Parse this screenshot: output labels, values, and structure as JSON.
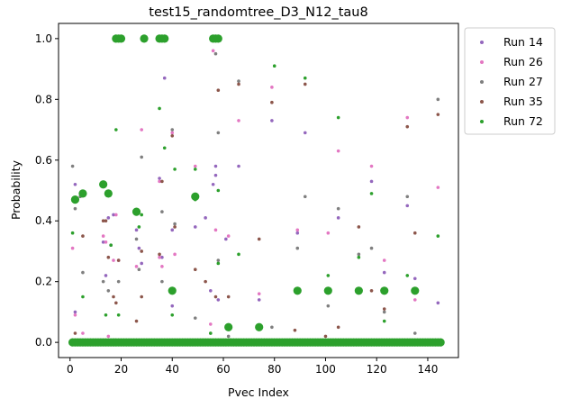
{
  "chart_data": {
    "type": "scatter",
    "title": "test15_randomtree_D3_N12_tau8",
    "xlabel": "Pvec Index",
    "ylabel": "Probability",
    "xlim": [
      -4.5,
      152
    ],
    "ylim": [
      -0.05,
      1.05
    ],
    "xticks": [
      0,
      20,
      40,
      60,
      80,
      100,
      120,
      140
    ],
    "yticks": [
      0.0,
      0.2,
      0.4,
      0.6,
      0.8,
      1.0
    ],
    "x_tick_labels": [
      "0",
      "20",
      "40",
      "60",
      "80",
      "100",
      "120",
      "140"
    ],
    "y_tick_labels": [
      "0.0",
      "0.2",
      "0.4",
      "0.6",
      "0.8",
      "1.0"
    ],
    "grid": false,
    "legend_position": "outside-top-right",
    "series": [
      {
        "name": "Run 14",
        "color": "#9467bd",
        "points": [
          [
            2,
            0.52
          ],
          [
            2,
            0.1
          ],
          [
            13,
            0.33
          ],
          [
            14,
            0.22
          ],
          [
            15,
            0.41
          ],
          [
            16,
            0.32
          ],
          [
            17,
            0.42
          ],
          [
            26,
            0.37
          ],
          [
            27,
            0.31
          ],
          [
            28,
            0.26
          ],
          [
            35,
            0.54
          ],
          [
            36,
            0.28
          ],
          [
            37,
            0.87
          ],
          [
            40,
            0.37
          ],
          [
            40,
            0.12
          ],
          [
            49,
            0.38
          ],
          [
            53,
            0.41
          ],
          [
            55,
            0.17
          ],
          [
            56,
            0.52
          ],
          [
            57,
            0.55
          ],
          [
            57,
            0.58
          ],
          [
            58,
            0.14
          ],
          [
            61,
            0.34
          ],
          [
            66,
            0.58
          ],
          [
            74,
            0.14
          ],
          [
            79,
            0.73
          ],
          [
            89,
            0.36
          ],
          [
            92,
            0.69
          ],
          [
            105,
            0.41
          ],
          [
            118,
            0.53
          ],
          [
            123,
            0.23
          ],
          [
            132,
            0.45
          ],
          [
            135,
            0.21
          ],
          [
            144,
            0.13
          ]
        ]
      },
      {
        "name": "Run 26",
        "color": "#e377c2",
        "points": [
          [
            1,
            0.31
          ],
          [
            2,
            0.09
          ],
          [
            5,
            0.03
          ],
          [
            13,
            0.35
          ],
          [
            14,
            0.33
          ],
          [
            15,
            0.02
          ],
          [
            17,
            0.27
          ],
          [
            18,
            0.42
          ],
          [
            19,
            0.27
          ],
          [
            26,
            0.25
          ],
          [
            28,
            0.7
          ],
          [
            35,
            0.53
          ],
          [
            35,
            0.28
          ],
          [
            36,
            0.25
          ],
          [
            40,
            0.69
          ],
          [
            41,
            0.29
          ],
          [
            49,
            0.58
          ],
          [
            55,
            0.06
          ],
          [
            56,
            0.96
          ],
          [
            57,
            0.37
          ],
          [
            62,
            0.35
          ],
          [
            66,
            0.73
          ],
          [
            74,
            0.16
          ],
          [
            79,
            0.84
          ],
          [
            89,
            0.37
          ],
          [
            101,
            0.36
          ],
          [
            105,
            0.63
          ],
          [
            118,
            0.58
          ],
          [
            123,
            0.27
          ],
          [
            132,
            0.74
          ],
          [
            135,
            0.14
          ],
          [
            144,
            0.51
          ]
        ]
      },
      {
        "name": "Run 27",
        "color": "#7f7f7f",
        "points": [
          [
            1,
            0.58
          ],
          [
            2,
            0.44
          ],
          [
            4,
            0.48
          ],
          [
            5,
            0.23
          ],
          [
            13,
            0.2
          ],
          [
            15,
            0.17
          ],
          [
            19,
            0.2
          ],
          [
            26,
            0.34
          ],
          [
            27,
            0.24
          ],
          [
            28,
            0.61
          ],
          [
            36,
            0.43
          ],
          [
            36,
            0.2
          ],
          [
            40,
            0.7
          ],
          [
            41,
            0.39
          ],
          [
            49,
            0.08
          ],
          [
            55,
            0.03
          ],
          [
            57,
            0.95
          ],
          [
            58,
            0.69
          ],
          [
            58,
            0.27
          ],
          [
            62,
            0.02
          ],
          [
            66,
            0.86
          ],
          [
            79,
            0.05
          ],
          [
            89,
            0.31
          ],
          [
            92,
            0.48
          ],
          [
            101,
            0.12
          ],
          [
            105,
            0.44
          ],
          [
            113,
            0.29
          ],
          [
            118,
            0.31
          ],
          [
            123,
            0.1
          ],
          [
            132,
            0.48
          ],
          [
            135,
            0.03
          ],
          [
            144,
            0.8
          ]
        ]
      },
      {
        "name": "Run 35",
        "color": "#8c564b",
        "points": [
          [
            2,
            0.03
          ],
          [
            5,
            0.35
          ],
          [
            13,
            0.4
          ],
          [
            14,
            0.4
          ],
          [
            15,
            0.28
          ],
          [
            17,
            0.15
          ],
          [
            18,
            0.13
          ],
          [
            19,
            0.27
          ],
          [
            26,
            0.43
          ],
          [
            26,
            0.07
          ],
          [
            28,
            0.3
          ],
          [
            28,
            0.15
          ],
          [
            35,
            0.29
          ],
          [
            36,
            0.53
          ],
          [
            40,
            0.68
          ],
          [
            41,
            0.38
          ],
          [
            49,
            0.24
          ],
          [
            53,
            0.2
          ],
          [
            57,
            0.15
          ],
          [
            58,
            0.83
          ],
          [
            62,
            0.15
          ],
          [
            66,
            0.85
          ],
          [
            74,
            0.34
          ],
          [
            79,
            0.79
          ],
          [
            88,
            0.04
          ],
          [
            92,
            0.85
          ],
          [
            100,
            0.02
          ],
          [
            105,
            0.05
          ],
          [
            113,
            0.38
          ],
          [
            118,
            0.17
          ],
          [
            123,
            0.11
          ],
          [
            132,
            0.71
          ],
          [
            135,
            0.36
          ],
          [
            144,
            0.75
          ]
        ]
      },
      {
        "name": "Run 72",
        "color": "#2ca02c",
        "points": [
          [
            1,
            0.36
          ],
          [
            2,
            0.47
          ],
          [
            5,
            0.49
          ],
          [
            5,
            0.15
          ],
          [
            13,
            0.52
          ],
          [
            14,
            0.09
          ],
          [
            15,
            0.49
          ],
          [
            16,
            0.32
          ],
          [
            18,
            0.7
          ],
          [
            19,
            0.09
          ],
          [
            26,
            0.43
          ],
          [
            27,
            0.38
          ],
          [
            28,
            0.42
          ],
          [
            35,
            0.77
          ],
          [
            37,
            0.64
          ],
          [
            40,
            0.17
          ],
          [
            40,
            0.09
          ],
          [
            41,
            0.57
          ],
          [
            49,
            0.47
          ],
          [
            49,
            0.57
          ],
          [
            55,
            0.03
          ],
          [
            58,
            0.5
          ],
          [
            58,
            0.26
          ],
          [
            62,
            0.05
          ],
          [
            66,
            0.29
          ],
          [
            74,
            0.05
          ],
          [
            80,
            0.91
          ],
          [
            89,
            0.17
          ],
          [
            92,
            0.87
          ],
          [
            101,
            0.17
          ],
          [
            101,
            0.22
          ],
          [
            105,
            0.74
          ],
          [
            113,
            0.17
          ],
          [
            113,
            0.28
          ],
          [
            118,
            0.49
          ],
          [
            123,
            0.17
          ],
          [
            123,
            0.07
          ],
          [
            132,
            0.22
          ],
          [
            135,
            0.17
          ],
          [
            144,
            0.35
          ]
        ]
      }
    ],
    "large_markers": {
      "series": "Run 72",
      "color": "#2ca02c",
      "points": [
        [
          2,
          0.47
        ],
        [
          5,
          0.49
        ],
        [
          13,
          0.52
        ],
        [
          15,
          0.49
        ],
        [
          26,
          0.43
        ],
        [
          40,
          0.17
        ],
        [
          49,
          0.48
        ],
        [
          62,
          0.05
        ],
        [
          74,
          0.05
        ],
        [
          89,
          0.17
        ],
        [
          101,
          0.17
        ],
        [
          113,
          0.17
        ],
        [
          123,
          0.17
        ],
        [
          135,
          0.17
        ],
        [
          18,
          1.0
        ],
        [
          19,
          1.0
        ],
        [
          20,
          1.0
        ],
        [
          29,
          1.0
        ],
        [
          35,
          1.0
        ],
        [
          36,
          1.0
        ],
        [
          37,
          1.0
        ],
        [
          56,
          1.0
        ],
        [
          57,
          1.0
        ],
        [
          58,
          1.0
        ]
      ],
      "zero_baseline_ranges": [
        [
          1,
          18
        ],
        [
          19,
          57
        ],
        [
          58,
          145
        ]
      ],
      "zero_value": 0.0
    }
  }
}
